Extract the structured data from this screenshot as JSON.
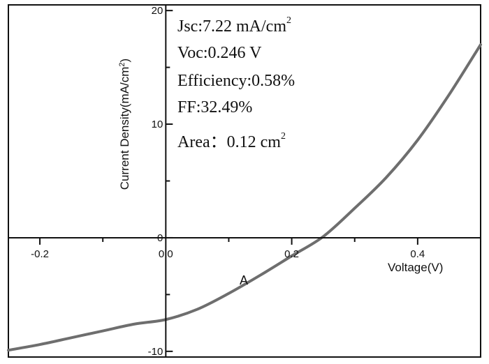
{
  "chart_data": {
    "type": "line",
    "xlabel": "Voltage(V)",
    "ylabel": "Current Density(mA/cm",
    "ylabel_sup": "2",
    "ylabel_end": ")",
    "xlim": [
      -0.25,
      0.5
    ],
    "ylim": [
      -10.5,
      20.5
    ],
    "x_ticks": [
      -0.2,
      0.0,
      0.2,
      0.4
    ],
    "x_tick_labels": [
      "-0.2",
      "0.0",
      "0.2",
      "0.4"
    ],
    "y_ticks": [
      -10,
      0,
      10,
      20
    ],
    "y_tick_labels": [
      "-10",
      "0",
      "10",
      "20"
    ],
    "grid": false,
    "series": [
      {
        "label": "A",
        "color": "#6e6e6e",
        "x": [
          -0.25,
          -0.2,
          -0.15,
          -0.1,
          -0.05,
          0.0,
          0.05,
          0.1,
          0.15,
          0.2,
          0.25,
          0.3,
          0.35,
          0.4,
          0.45,
          0.5
        ],
        "y": [
          -9.9,
          -9.4,
          -8.8,
          -8.2,
          -7.6,
          -7.2,
          -6.3,
          -4.9,
          -3.3,
          -1.6,
          0.1,
          2.6,
          5.3,
          8.6,
          12.6,
          17.0
        ]
      }
    ],
    "annotations": [
      {
        "text": "Jsc:7.22 mA/cm",
        "sup": "2"
      },
      {
        "text": "Voc:0.246 V",
        "sup": ""
      },
      {
        "text": "Efficiency:0.58%",
        "sup": ""
      },
      {
        "text": "FF:32.49%",
        "sup": ""
      },
      {
        "text": "Area：0.12 cm",
        "sup": "2"
      }
    ]
  }
}
